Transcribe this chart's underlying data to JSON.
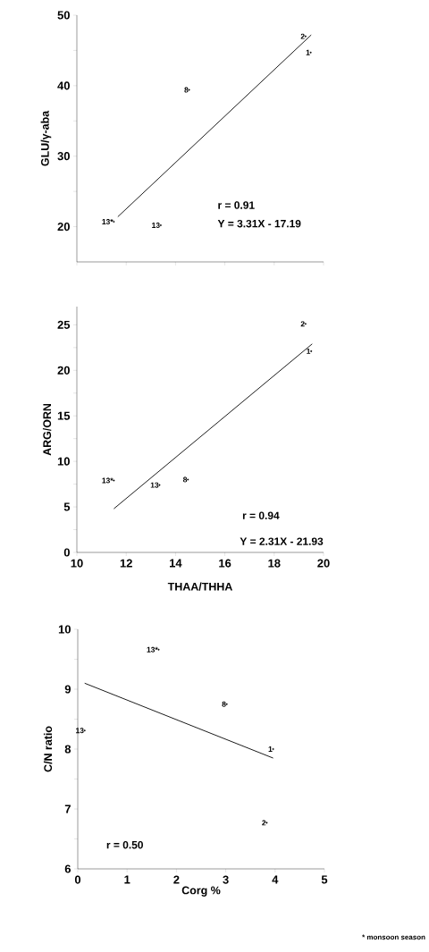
{
  "chart_data": [
    {
      "type": "scatter",
      "ylabel": "GLU/γ-aba",
      "xlim": [
        10,
        20
      ],
      "ylim": [
        15,
        50
      ],
      "tick_labels": "y",
      "xticks": [
        {
          "value": 10,
          "label": null
        },
        {
          "value": 12,
          "label": null
        },
        {
          "value": 14,
          "label": null
        },
        {
          "value": 16,
          "label": null
        },
        {
          "value": 18,
          "label": null
        },
        {
          "value": 20,
          "label": null
        }
      ],
      "yticks": [
        20,
        {
          "value": 25,
          "label": null
        },
        30,
        {
          "value": 35,
          "label": null
        },
        40,
        {
          "value": 45,
          "label": null
        },
        50
      ],
      "series": [
        {
          "type": "scatter",
          "color": "#000000",
          "marker": "circle",
          "x": [
            19.27,
            19.48,
            14.55,
            11.5,
            13.4
          ],
          "values": [
            47.0,
            44.7,
            39.4,
            20.7,
            20.2
          ]
        },
        {
          "type": "line",
          "color": "#000000",
          "marker": "none",
          "x": [
            11.66,
            19.5
          ],
          "values": [
            21.4,
            47.2
          ]
        }
      ],
      "annotations": [
        {
          "text": "2",
          "x": 19.27,
          "y": 47.0
        },
        {
          "text": "1",
          "x": 19.48,
          "y": 44.7
        },
        {
          "text": "8",
          "x": 14.55,
          "y": 39.4
        },
        {
          "text": "13*",
          "x": 11.5,
          "y": 20.7
        },
        {
          "text": "13",
          "x": 13.4,
          "y": 20.2
        },
        "r = 0.91",
        "Y = 3.31X - 17.19"
      ]
    },
    {
      "type": "scatter",
      "xlabel": "THAA/THHA",
      "ylabel": "ARG/ORN",
      "xlim": [
        10,
        20
      ],
      "ylim": [
        0,
        27
      ],
      "xticks": [
        10,
        12,
        14,
        16,
        18,
        20
      ],
      "yticks": [
        0,
        {
          "value": 2.5,
          "label": null
        },
        5,
        {
          "value": 7.5,
          "label": null
        },
        10,
        {
          "value": 12.5,
          "label": null
        },
        15,
        {
          "value": 17.5,
          "label": null
        },
        20,
        {
          "value": 22.5,
          "label": null
        },
        25
      ],
      "series": [
        {
          "type": "scatter",
          "color": "#000000",
          "marker": "circle",
          "x": [
            19.27,
            19.5,
            11.5,
            13.35,
            14.5
          ],
          "values": [
            25.1,
            22.1,
            7.9,
            7.4,
            8.0
          ]
        },
        {
          "type": "line",
          "color": "#000000",
          "marker": "none",
          "x": [
            11.5,
            19.54
          ],
          "values": [
            4.8,
            22.9
          ]
        }
      ],
      "annotations": [
        {
          "text": "2",
          "x": 19.27,
          "y": 25.1
        },
        {
          "text": "1",
          "x": 19.5,
          "y": 22.1
        },
        {
          "text": "13*",
          "x": 11.5,
          "y": 7.9
        },
        {
          "text": "13",
          "x": 13.35,
          "y": 7.4
        },
        {
          "text": "8",
          "x": 14.5,
          "y": 8.0
        },
        "r = 0.94",
        "Y = 2.31X - 21.93"
      ]
    },
    {
      "type": "scatter",
      "xlabel": "Corg %",
      "ylabel": "C/N ratio",
      "xlim": [
        0,
        5
      ],
      "ylim": [
        6,
        10
      ],
      "xticks": [
        0,
        1,
        2,
        3,
        4,
        5
      ],
      "yticks": [
        6,
        {
          "value": 6.5,
          "label": null
        },
        7,
        {
          "value": 7.5,
          "label": null
        },
        8,
        {
          "value": 8.5,
          "label": null
        },
        9,
        {
          "value": 9.5,
          "label": null
        },
        10
      ],
      "series": [
        {
          "type": "scatter",
          "color": "#000000",
          "marker": "circle",
          "x": [
            1.64,
            3.02,
            0.14,
            3.96,
            3.83
          ],
          "values": [
            9.66,
            8.75,
            8.31,
            8.0,
            6.77
          ]
        },
        {
          "type": "line",
          "color": "#000000",
          "marker": "none",
          "x": [
            0.14,
            3.96
          ],
          "values": [
            9.1,
            7.85
          ]
        }
      ],
      "annotations": [
        {
          "text": "13*",
          "x": 1.64,
          "y": 9.66
        },
        {
          "text": "8",
          "x": 3.02,
          "y": 8.75
        },
        {
          "text": "13",
          "x": 0.14,
          "y": 8.31
        },
        {
          "text": "1",
          "x": 3.96,
          "y": 8.0
        },
        {
          "text": "2",
          "x": 3.83,
          "y": 6.77
        },
        "r = 0.50",
        "* monsoon season"
      ]
    }
  ]
}
